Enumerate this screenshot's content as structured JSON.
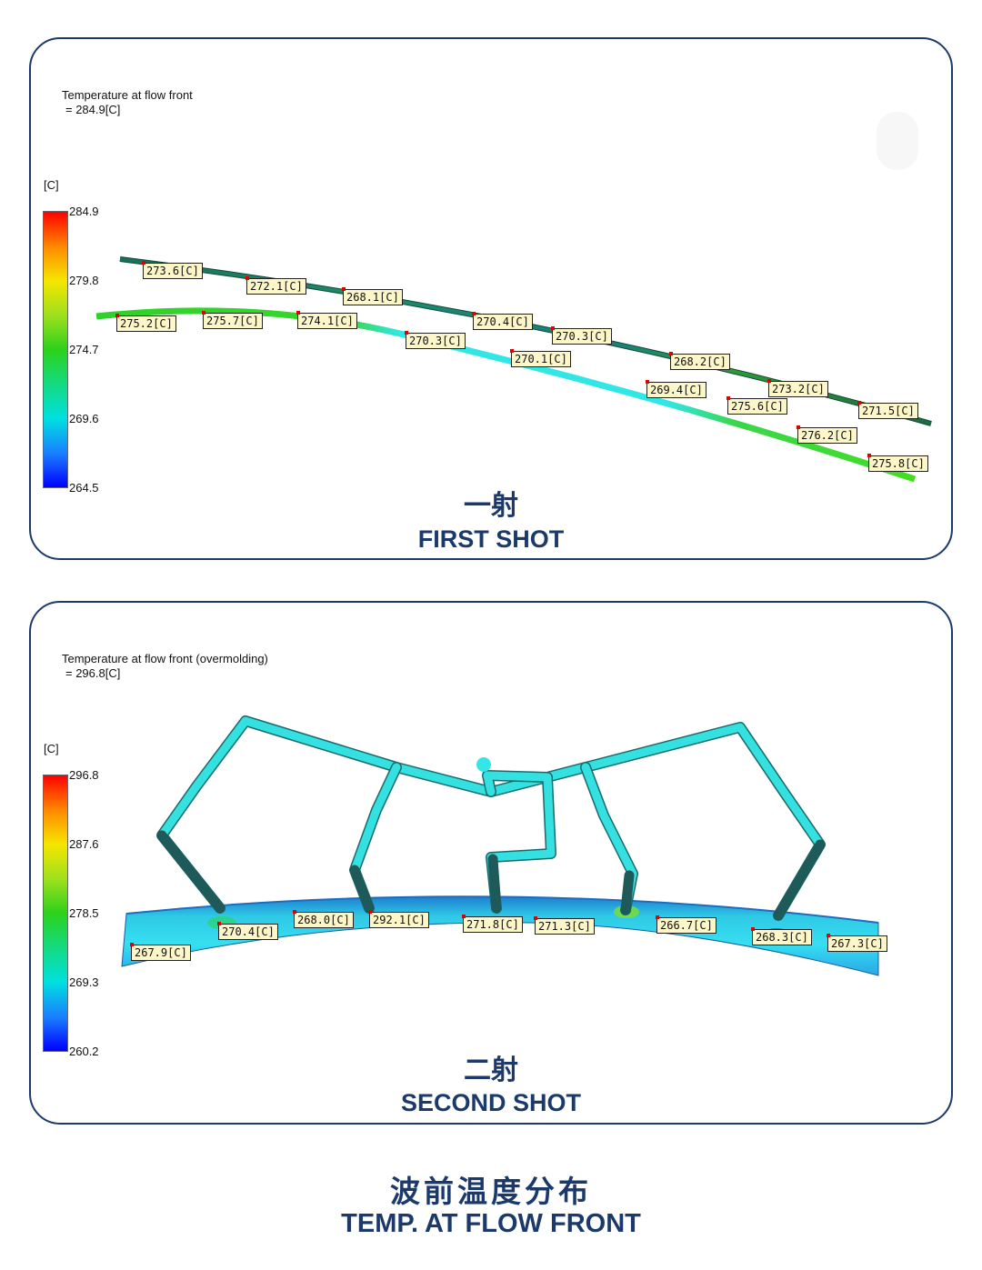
{
  "first_shot": {
    "result_name": "Temperature at flow front",
    "result_value": "= 284.9[C]",
    "unit": "[C]",
    "scale_ticks": [
      "284.9",
      "279.8",
      "274.7",
      "269.6",
      "264.5"
    ],
    "probes": [
      "273.6[C]",
      "272.1[C]",
      "268.1[C]",
      "275.2[C]",
      "275.7[C]",
      "274.1[C]",
      "270.4[C]",
      "270.3[C]",
      "270.3[C]",
      "270.1[C]",
      "268.2[C]",
      "269.4[C]",
      "273.2[C]",
      "275.6[C]",
      "271.5[C]",
      "276.2[C]",
      "275.8[C]"
    ],
    "caption_cn": "一射",
    "caption_en": "FIRST SHOT"
  },
  "second_shot": {
    "result_name": "Temperature at flow front (overmolding)",
    "result_value": "= 296.8[C]",
    "unit": "[C]",
    "scale_ticks": [
      "296.8",
      "287.6",
      "278.5",
      "269.3",
      "260.2"
    ],
    "probes": [
      "268.0[C]",
      "292.1[C]",
      "271.8[C]",
      "271.3[C]",
      "266.7[C]",
      "270.4[C]",
      "268.3[C]",
      "267.9[C]",
      "267.3[C]"
    ],
    "caption_cn": "二射",
    "caption_en": "SECOND SHOT"
  },
  "footer": {
    "title_cn": "波前温度分布",
    "title_en": "TEMP. AT FLOW FRONT"
  },
  "colors": {
    "frame": "#1b3a6b",
    "cyan": "#2ee6e6",
    "green": "#33cc22",
    "probe_bg": "#fcf6c8"
  }
}
